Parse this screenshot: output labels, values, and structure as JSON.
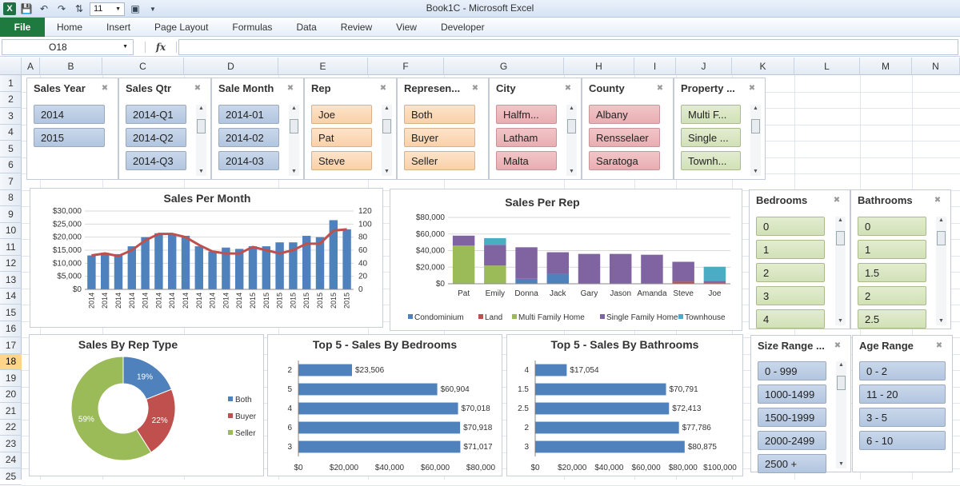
{
  "window": {
    "title": "Book1C - Microsoft Excel"
  },
  "qat": {
    "font_size": "11"
  },
  "ribbon": {
    "file": "File",
    "tabs": [
      "Home",
      "Insert",
      "Page Layout",
      "Formulas",
      "Data",
      "Review",
      "View",
      "Developer"
    ]
  },
  "formula_bar": {
    "name_box": "O18",
    "fx": "fx",
    "value": ""
  },
  "columns": [
    "A",
    "B",
    "C",
    "D",
    "E",
    "F",
    "G",
    "H",
    "I",
    "J",
    "K",
    "L",
    "M",
    "N"
  ],
  "rows": [
    "1",
    "2",
    "3",
    "4",
    "5",
    "6",
    "7",
    "8",
    "9",
    "10",
    "11",
    "12",
    "13",
    "14",
    "15",
    "16",
    "17",
    "18",
    "19",
    "20",
    "21",
    "22",
    "23",
    "24",
    "25"
  ],
  "selected_row": "18",
  "slicers_top": [
    {
      "title": "Sales Year",
      "items": [
        "2014",
        "2015"
      ],
      "style": "blue"
    },
    {
      "title": "Sales Qtr",
      "items": [
        "2014-Q1",
        "2014-Q2",
        "2014-Q3"
      ],
      "style": "blue"
    },
    {
      "title": "Sale Month",
      "items": [
        "2014-01",
        "2014-02",
        "2014-03"
      ],
      "style": "blue"
    },
    {
      "title": "Rep",
      "items": [
        "Joe",
        "Pat",
        "Steve"
      ],
      "style": "peach"
    },
    {
      "title": "Represen...",
      "items": [
        "Both",
        "Buyer",
        "Seller"
      ],
      "style": "peach"
    },
    {
      "title": "City",
      "items": [
        "Halfm...",
        "Latham",
        "Malta"
      ],
      "style": "pink"
    },
    {
      "title": "County",
      "items": [
        "Albany",
        "Rensselaer",
        "Saratoga"
      ],
      "style": "pink"
    },
    {
      "title": "Property ...",
      "items": [
        "Multi F...",
        "Single ...",
        "Townh..."
      ],
      "style": "green"
    }
  ],
  "slicers_bedbath": [
    {
      "title": "Bedrooms",
      "items": [
        "0",
        "1",
        "2",
        "3",
        "4"
      ],
      "style": "green"
    },
    {
      "title": "Bathrooms",
      "items": [
        "0",
        "1",
        "1.5",
        "2",
        "2.5"
      ],
      "style": "green"
    }
  ],
  "slicers_bottom": [
    {
      "title": "Size Range ...",
      "items": [
        "0 - 999",
        "1000-1499",
        "1500-1999",
        "2000-2499",
        "2500 +"
      ],
      "style": "blue"
    },
    {
      "title": "Age Range",
      "items": [
        "0 - 2",
        "11 - 20",
        "3 - 5",
        "6 - 10"
      ],
      "style": "blue"
    }
  ],
  "chart_data": [
    {
      "type": "bar",
      "title": "Sales Per Month",
      "categories": [
        "2014",
        "2014",
        "2014",
        "2014",
        "2014",
        "2014",
        "2014",
        "2014",
        "2014",
        "2014",
        "2014",
        "2014",
        "2015",
        "2015",
        "2015",
        "2015",
        "2015",
        "2015",
        "2015",
        "2015"
      ],
      "series": [
        {
          "values": [
            13000,
            14000,
            13500,
            16500,
            20000,
            21500,
            21000,
            20500,
            16500,
            14500,
            16000,
            15500,
            16500,
            16500,
            18000,
            18000,
            20500,
            20000,
            26500,
            23000
          ]
        },
        {
          "axis": "secondary",
          "type": "line",
          "color": "#c0504d",
          "values": [
            52,
            55,
            51,
            60,
            75,
            85,
            85,
            80,
            68,
            58,
            55,
            55,
            65,
            60,
            55,
            60,
            70,
            70,
            90,
            92
          ]
        }
      ],
      "yticks": [
        "$0",
        "$5,000",
        "$10,000",
        "$15,000",
        "$20,000",
        "$25,000",
        "$30,000"
      ],
      "ylim": [
        0,
        30000
      ],
      "y2ticks": [
        "0",
        "20",
        "40",
        "60",
        "80",
        "100",
        "120"
      ],
      "y2lim": [
        0,
        120
      ],
      "bar_color": "#4f81bd"
    },
    {
      "type": "stacked_bar",
      "title": "Sales Per Rep",
      "categories": [
        "Pat",
        "Emily",
        "Donna",
        "Jack",
        "Gary",
        "Jason",
        "Amanda",
        "Steve",
        "Joe"
      ],
      "series": [
        {
          "name": "Condominium",
          "color": "#4f81bd",
          "values": [
            0,
            0,
            6000,
            12000,
            0,
            0,
            0,
            0,
            0
          ]
        },
        {
          "name": "Land",
          "color": "#c0504d",
          "values": [
            0,
            0,
            0,
            0,
            0,
            0,
            0,
            2500,
            1500
          ]
        },
        {
          "name": "Multi Family Home",
          "color": "#9bbb59",
          "values": [
            46000,
            22000,
            0,
            0,
            0,
            0,
            0,
            0,
            0
          ]
        },
        {
          "name": "Single Family Home",
          "color": "#8064a2",
          "values": [
            12000,
            25000,
            38000,
            26000,
            36000,
            36000,
            35000,
            24000,
            2000
          ]
        },
        {
          "name": "Townhouse",
          "color": "#4bacc6",
          "values": [
            0,
            8000,
            0,
            0,
            0,
            0,
            0,
            0,
            17000
          ]
        }
      ],
      "yticks": [
        "$0",
        "$20,000",
        "$40,000",
        "$60,000",
        "$80,000"
      ],
      "ylim": [
        0,
        80000
      ]
    },
    {
      "type": "pie",
      "title": "Sales By Rep Type",
      "slices": [
        {
          "name": "Both",
          "value": 19,
          "label": "19%",
          "color": "#4f81bd"
        },
        {
          "name": "Buyer",
          "value": 22,
          "label": "22%",
          "color": "#c0504d"
        },
        {
          "name": "Seller",
          "value": 59,
          "label": "59%",
          "color": "#9bbb59"
        }
      ]
    },
    {
      "type": "bar",
      "orientation": "horizontal",
      "title": "Top 5 - Sales By Bedrooms",
      "categories": [
        "2",
        "5",
        "4",
        "6",
        "3"
      ],
      "values": [
        23506,
        60904,
        70018,
        70918,
        71017
      ],
      "value_labels": [
        "$23,506",
        "$60,904",
        "$70,018",
        "$70,918",
        "$71,017"
      ],
      "xticks": [
        "$0",
        "$20,000",
        "$40,000",
        "$60,000",
        "$80,000"
      ],
      "xlim": [
        0,
        80000
      ]
    },
    {
      "type": "bar",
      "orientation": "horizontal",
      "title": "Top 5 - Sales By Bathrooms",
      "categories": [
        "4",
        "1.5",
        "2.5",
        "2",
        "3"
      ],
      "values": [
        17054,
        70791,
        72413,
        77786,
        80875
      ],
      "value_labels": [
        "$17,054",
        "$70,791",
        "$72,413",
        "$77,786",
        "$80,875"
      ],
      "xticks": [
        "$0",
        "$20,000",
        "$40,000",
        "$60,000",
        "$80,000",
        "$100,000"
      ],
      "xlim": [
        0,
        100000
      ]
    }
  ]
}
